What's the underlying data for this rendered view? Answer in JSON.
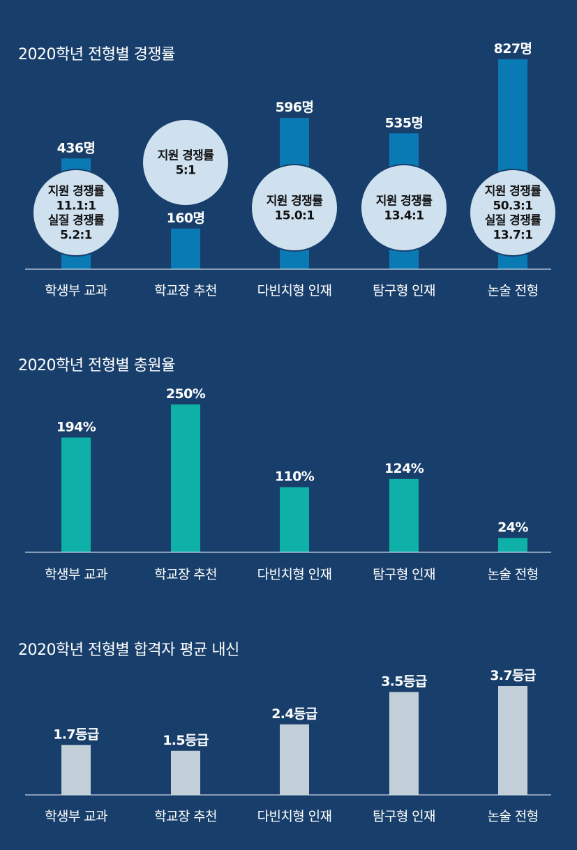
{
  "chart_data": [
    {
      "type": "bar",
      "title": "2020학년 전형별 경쟁률",
      "categories": [
        "학생부 교과",
        "학교장 추천",
        "다빈치형 인재",
        "탐구형 인재",
        "논술 전형"
      ],
      "values": [
        436,
        160,
        596,
        535,
        827
      ],
      "value_labels": [
        "436명",
        "160명",
        "596명",
        "535명",
        "827명"
      ],
      "annotations": [
        [
          "지원 경쟁률",
          "11.1:1",
          "실질 경쟁률",
          "5.2:1"
        ],
        [
          "지원 경쟁률",
          "5:1"
        ],
        [
          "지원 경쟁률",
          "15.0:1"
        ],
        [
          "지원 경쟁률",
          "13.4:1"
        ],
        [
          "지원 경쟁률",
          "50.3:1",
          "실질 경쟁률",
          "13.7:1"
        ]
      ],
      "ylim": [
        0,
        827
      ],
      "grid": false,
      "colors": {
        "bar": "#0a7ab4",
        "bubble": "#cfe0ef",
        "axis": "#c8d4e0"
      }
    },
    {
      "type": "bar",
      "title": "2020학년 전형별 충원율",
      "categories": [
        "학생부 교과",
        "학교장 추천",
        "다빈치형 인재",
        "탐구형 인재",
        "논술 전형"
      ],
      "values": [
        194,
        250,
        110,
        124,
        24
      ],
      "value_labels": [
        "194%",
        "250%",
        "110%",
        "124%",
        "24%"
      ],
      "ylim": [
        0,
        250
      ],
      "grid": false,
      "colors": {
        "bar": "#0fb0a8",
        "axis": "#c8d4e0"
      }
    },
    {
      "type": "bar",
      "title": "2020학년 전형별 합격자 평균 내신",
      "categories": [
        "학생부 교과",
        "학교장 추천",
        "다빈치형 인재",
        "탐구형 인재",
        "논술 전형"
      ],
      "values": [
        1.7,
        1.5,
        2.4,
        3.5,
        3.7
      ],
      "value_labels": [
        "1.7등급",
        "1.5등급",
        "2.4등급",
        "3.5등급",
        "3.7등급"
      ],
      "ylim": [
        0,
        3.7
      ],
      "grid": false,
      "colors": {
        "bar": "#c3cfd8",
        "axis": "#c8d4e0"
      }
    }
  ]
}
